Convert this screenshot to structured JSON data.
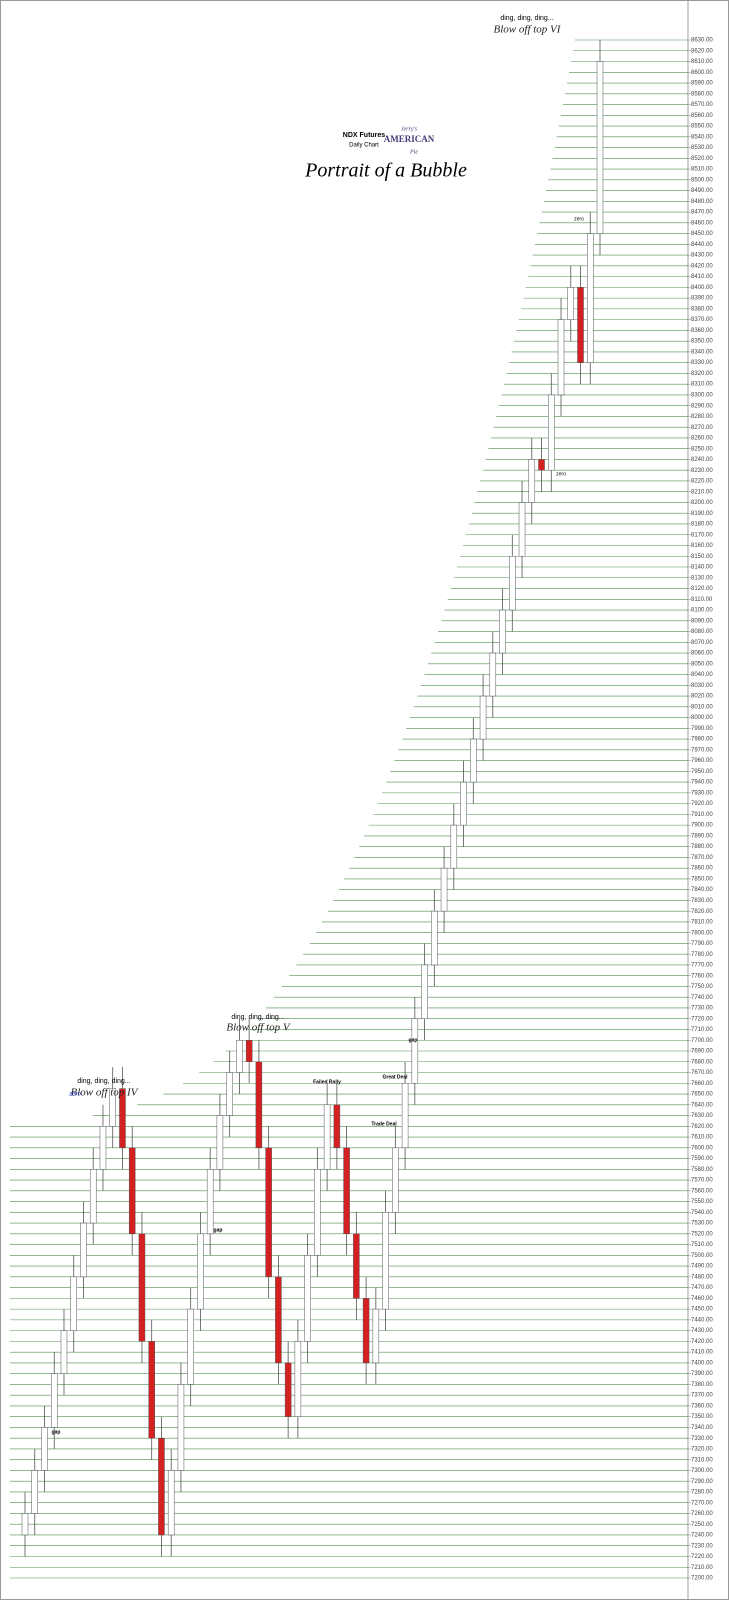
{
  "chart_data": {
    "type": "candlestick",
    "annotations": [
      "ding, ding, ding...",
      "Blow off top VI",
      "NDX Futures",
      "Daily Chart",
      "Portrait of a Bubble",
      "zero",
      "zero",
      "ding, ding, ding...",
      "Blow off top V",
      "Failed Rally",
      "Great Deal",
      "Trade Deal",
      "gap",
      "ding, ding, ding...",
      "Blow off top IV",
      "zero",
      "gap",
      "gap"
    ],
    "logo": [
      "Jerry's",
      "AMERICAN",
      "Pie"
    ],
    "open": [
      7240,
      7260,
      7300,
      7340,
      7390,
      7430,
      7480,
      7530,
      7580,
      7620,
      7655,
      7600,
      7520,
      7420,
      7330,
      7240,
      7300,
      7380,
      7450,
      7520,
      7580,
      7630,
      7670,
      7700,
      7680,
      7600,
      7480,
      7400,
      7350,
      7420,
      7500,
      7580,
      7640,
      7600,
      7520,
      7460,
      7400,
      7450,
      7540,
      7600,
      7660,
      7720,
      7770,
      7820,
      7860,
      7900,
      7940,
      7980,
      8020,
      8060,
      8100,
      8150,
      8200,
      8240,
      8230,
      8300,
      8370,
      8400,
      8330,
      8450
    ],
    "high": [
      7280,
      7320,
      7360,
      7410,
      7450,
      7500,
      7550,
      7600,
      7640,
      7675,
      7675,
      7620,
      7540,
      7440,
      7350,
      7320,
      7400,
      7470,
      7540,
      7600,
      7650,
      7690,
      7720,
      7720,
      7700,
      7620,
      7500,
      7420,
      7440,
      7520,
      7600,
      7660,
      7660,
      7620,
      7540,
      7480,
      7470,
      7560,
      7620,
      7680,
      7740,
      7790,
      7840,
      7880,
      7920,
      7960,
      8000,
      8040,
      8080,
      8120,
      8170,
      8220,
      8260,
      8260,
      8320,
      8390,
      8420,
      8420,
      8470,
      8630
    ],
    "low": [
      7220,
      7240,
      7280,
      7320,
      7370,
      7410,
      7460,
      7510,
      7560,
      7600,
      7580,
      7500,
      7400,
      7310,
      7220,
      7220,
      7280,
      7360,
      7430,
      7500,
      7560,
      7610,
      7650,
      7660,
      7580,
      7460,
      7380,
      7330,
      7330,
      7400,
      7480,
      7560,
      7580,
      7500,
      7440,
      7380,
      7380,
      7430,
      7520,
      7580,
      7640,
      7700,
      7750,
      7800,
      7840,
      7880,
      7920,
      7960,
      8000,
      8040,
      8080,
      8130,
      8180,
      8210,
      8210,
      8280,
      8350,
      8310,
      8310,
      8430
    ],
    "close": [
      7260,
      7300,
      7340,
      7390,
      7430,
      7480,
      7530,
      7580,
      7620,
      7655,
      7600,
      7520,
      7420,
      7330,
      7240,
      7300,
      7380,
      7450,
      7520,
      7580,
      7630,
      7670,
      7700,
      7680,
      7600,
      7480,
      7400,
      7350,
      7420,
      7500,
      7580,
      7640,
      7600,
      7520,
      7460,
      7400,
      7450,
      7540,
      7600,
      7660,
      7720,
      7770,
      7820,
      7860,
      7900,
      7940,
      7980,
      8020,
      8060,
      8100,
      8150,
      8200,
      8240,
      8230,
      8300,
      8370,
      8400,
      8330,
      8450,
      8610
    ],
    "up_color": "#ffffff",
    "down_color": "#d42020",
    "grid_color": "#4f8f4f",
    "grid": true,
    "ylim": [
      7200,
      8630
    ],
    "yticks": [
      {
        "value": 8630,
        "label": "8630.00"
      },
      {
        "value": 8620,
        "label": "8620.00"
      },
      {
        "value": 8610,
        "label": "8610.00"
      },
      {
        "value": 8600,
        "label": "8600.00"
      },
      {
        "value": 8590,
        "label": "8590.00"
      },
      {
        "value": 8580,
        "label": "8580.00"
      },
      {
        "value": 8570,
        "label": "8570.00"
      },
      {
        "value": 8560,
        "label": "8560.00"
      },
      {
        "value": 8550,
        "label": "8550.00"
      },
      {
        "value": 8540,
        "label": "8540.00"
      },
      {
        "value": 8530,
        "label": "8530.00"
      },
      {
        "value": 8520,
        "label": "8520.00"
      },
      {
        "value": 8510,
        "label": "8510.00"
      },
      {
        "value": 8500,
        "label": "8500.00"
      },
      {
        "value": 8490,
        "label": "8490.00"
      },
      {
        "value": 8480,
        "label": "8480.00"
      },
      {
        "value": 8470,
        "label": "8470.00"
      },
      {
        "value": 8460,
        "label": "8460.00"
      },
      {
        "value": 8450,
        "label": "8450.00"
      },
      {
        "value": 8440,
        "label": "8440.00"
      },
      {
        "value": 8430,
        "label": "8430.00"
      },
      {
        "value": 8420,
        "label": "8420.00"
      },
      {
        "value": 8410,
        "label": "8410.00"
      },
      {
        "value": 8400,
        "label": "8400.00"
      },
      {
        "value": 8390,
        "label": "8390.00"
      },
      {
        "value": 8380,
        "label": "8380.00"
      },
      {
        "value": 8370,
        "label": "8370.00"
      },
      {
        "value": 8360,
        "label": "8360.00"
      },
      {
        "value": 8350,
        "label": "8350.00"
      },
      {
        "value": 8340,
        "label": "8340.00"
      },
      {
        "value": 8330,
        "label": "8330.00"
      },
      {
        "value": 8320,
        "label": "8320.00"
      },
      {
        "value": 8310,
        "label": "8310.00"
      },
      {
        "value": 8300,
        "label": "8300.00"
      },
      {
        "value": 8290,
        "label": "8290.00"
      },
      {
        "value": 8280,
        "label": "8280.00"
      },
      {
        "value": 8270,
        "label": "8270.00"
      },
      {
        "value": 8260,
        "label": "8260.00"
      },
      {
        "value": 8250,
        "label": "8250.00"
      },
      {
        "value": 8240,
        "label": "8240.00"
      },
      {
        "value": 8230,
        "label": "8230.00"
      },
      {
        "value": 8220,
        "label": "8220.00"
      },
      {
        "value": 8210,
        "label": "8210.00"
      },
      {
        "value": 8200,
        "label": "8200.00"
      },
      {
        "value": 8190,
        "label": "8190.00"
      },
      {
        "value": 8180,
        "label": "8180.00"
      },
      {
        "value": 8170,
        "label": "8170.00"
      },
      {
        "value": 8160,
        "label": "8160.00"
      },
      {
        "value": 8150,
        "label": "8150.00"
      },
      {
        "value": 8140,
        "label": "8140.00"
      },
      {
        "value": 8130,
        "label": "8130.00"
      },
      {
        "value": 8120,
        "label": "8120.00"
      },
      {
        "value": 8110,
        "label": "8110.00"
      },
      {
        "value": 8100,
        "label": "8100.00"
      },
      {
        "value": 8090,
        "label": "8090.00"
      },
      {
        "value": 8080,
        "label": "8080.00"
      },
      {
        "value": 8070,
        "label": "8070.00"
      },
      {
        "value": 8060,
        "label": "8060.00"
      },
      {
        "value": 8050,
        "label": "8050.00"
      },
      {
        "value": 8040,
        "label": "8040.00"
      },
      {
        "value": 8030,
        "label": "8030.00"
      },
      {
        "value": 8020,
        "label": "8020.00"
      },
      {
        "value": 8010,
        "label": "8010.00"
      },
      {
        "value": 8000,
        "label": "8000.00"
      },
      {
        "value": 7990,
        "label": "7990.00"
      },
      {
        "value": 7980,
        "label": "7980.00"
      },
      {
        "value": 7970,
        "label": "7970.00"
      },
      {
        "value": 7960,
        "label": "7960.00"
      },
      {
        "value": 7950,
        "label": "7950.00"
      },
      {
        "value": 7940,
        "label": "7940.00"
      },
      {
        "value": 7930,
        "label": "7930.00"
      },
      {
        "value": 7920,
        "label": "7920.00"
      },
      {
        "value": 7910,
        "label": "7910.00"
      },
      {
        "value": 7900,
        "label": "7900.00"
      },
      {
        "value": 7890,
        "label": "7890.00"
      },
      {
        "value": 7880,
        "label": "7880.00"
      },
      {
        "value": 7870,
        "label": "7870.00"
      },
      {
        "value": 7860,
        "label": "7860.00"
      },
      {
        "value": 7850,
        "label": "7850.00"
      },
      {
        "value": 7840,
        "label": "7840.00"
      },
      {
        "value": 7830,
        "label": "7830.00"
      },
      {
        "value": 7820,
        "label": "7820.00"
      },
      {
        "value": 7810,
        "label": "7810.00"
      },
      {
        "value": 7800,
        "label": "7800.00"
      },
      {
        "value": 7790,
        "label": "7790.00"
      },
      {
        "value": 7780,
        "label": "7780.00"
      },
      {
        "value": 7770,
        "label": "7770.00"
      },
      {
        "value": 7760,
        "label": "7760.00"
      },
      {
        "value": 7750,
        "label": "7750.00"
      },
      {
        "value": 7740,
        "label": "7740.00"
      },
      {
        "value": 7730,
        "label": "7730.00"
      },
      {
        "value": 7720,
        "label": "7720.00"
      },
      {
        "value": 7710,
        "label": "7710.00"
      },
      {
        "value": 7700,
        "label": "7700.00"
      },
      {
        "value": 7690,
        "label": "7690.00"
      },
      {
        "value": 7680,
        "label": "7680.00"
      },
      {
        "value": 7670,
        "label": "7670.00"
      },
      {
        "value": 7660,
        "label": "7660.00"
      },
      {
        "value": 7650,
        "label": "7650.00"
      },
      {
        "value": 7640,
        "label": "7640.00"
      },
      {
        "value": 7630,
        "label": "7630.00"
      },
      {
        "value": 7620,
        "label": "7620.00"
      },
      {
        "value": 7610,
        "label": "7610.00"
      },
      {
        "value": 7600,
        "label": "7600.00"
      },
      {
        "value": 7590,
        "label": "7590.00"
      },
      {
        "value": 7580,
        "label": "7580.00"
      },
      {
        "value": 7570,
        "label": "7570.00"
      },
      {
        "value": 7560,
        "label": "7560.00"
      },
      {
        "value": 7550,
        "label": "7550.00"
      },
      {
        "value": 7540,
        "label": "7540.00"
      },
      {
        "value": 7530,
        "label": "7530.00"
      },
      {
        "value": 7520,
        "label": "7520.00"
      },
      {
        "value": 7510,
        "label": "7510.00"
      },
      {
        "value": 7500,
        "label": "7500.00"
      },
      {
        "value": 7490,
        "label": "7490.00"
      },
      {
        "value": 7480,
        "label": "7480.00"
      },
      {
        "value": 7470,
        "label": "7470.00"
      },
      {
        "value": 7460,
        "label": "7460.00"
      },
      {
        "value": 7450,
        "label": "7450.00"
      },
      {
        "value": 7440,
        "label": "7440.00"
      },
      {
        "value": 7430,
        "label": "7430.00"
      },
      {
        "value": 7420,
        "label": "7420.00"
      },
      {
        "value": 7410,
        "label": "7410.00"
      },
      {
        "value": 7400,
        "label": "7400.00"
      },
      {
        "value": 7390,
        "label": "7390.00"
      },
      {
        "value": 7380,
        "label": "7380.00"
      },
      {
        "value": 7370,
        "label": "7370.00"
      },
      {
        "value": 7360,
        "label": "7360.00"
      },
      {
        "value": 7350,
        "label": "7350.00"
      },
      {
        "value": 7340,
        "label": "7340.00"
      },
      {
        "value": 7330,
        "label": "7330.00"
      },
      {
        "value": 7320,
        "label": "7320.00"
      },
      {
        "value": 7310,
        "label": "7310.00"
      },
      {
        "value": 7300,
        "label": "7300.00"
      },
      {
        "value": 7290,
        "label": "7290.00"
      },
      {
        "value": 7280,
        "label": "7280.00"
      },
      {
        "value": 7270,
        "label": "7270.00"
      },
      {
        "value": 7260,
        "label": "7260.00"
      },
      {
        "value": 7250,
        "label": "7250.00"
      },
      {
        "value": 7240,
        "label": "7240.00"
      },
      {
        "value": 7230,
        "label": "7230.00"
      },
      {
        "value": 7220,
        "label": "7220.00"
      },
      {
        "value": 7210,
        "label": "7210.00"
      },
      {
        "value": 7200,
        "label": "7200.00"
      }
    ]
  }
}
